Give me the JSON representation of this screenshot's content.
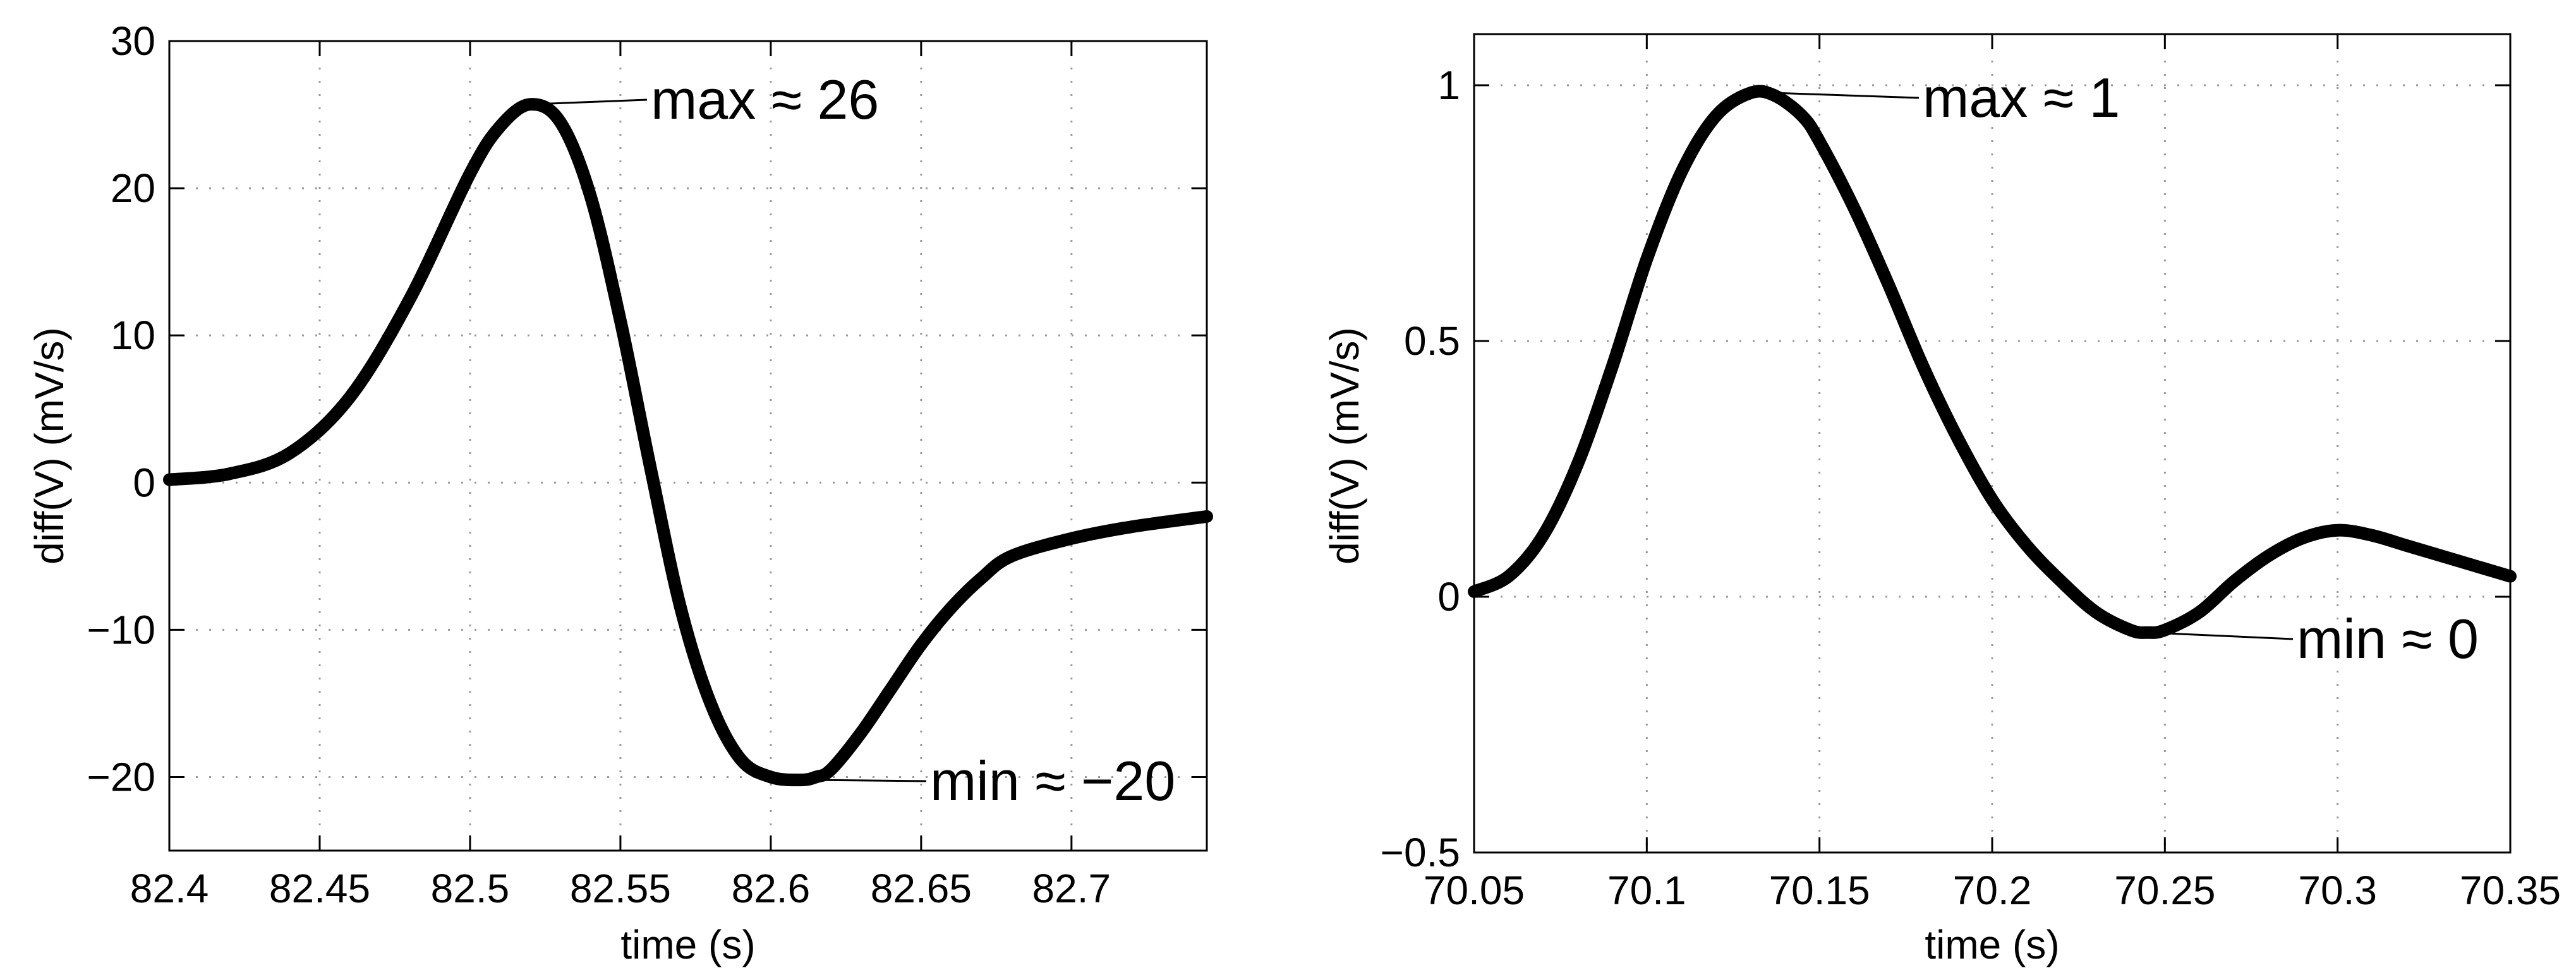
{
  "chart_data": [
    {
      "type": "line",
      "title": "",
      "xlabel": "time (s)",
      "ylabel": "diff(V) (mV/s)",
      "xlim": [
        82.4,
        82.745
      ],
      "ylim": [
        -25,
        30
      ],
      "xticks": [
        82.4,
        82.45,
        82.5,
        82.55,
        82.6,
        82.65,
        82.7
      ],
      "xtick_labels": [
        "82.4",
        "82.45",
        "82.5",
        "82.55",
        "82.6",
        "82.65",
        "82.7"
      ],
      "yticks": [
        -20,
        -10,
        0,
        10,
        20,
        30
      ],
      "ytick_labels": [
        "−20",
        "−10",
        "0",
        "10",
        "20",
        "30"
      ],
      "grid": true,
      "series": [
        {
          "x": [
            82.4,
            82.42,
            82.44,
            82.46,
            82.48,
            82.5,
            82.51,
            82.52,
            82.53,
            82.54,
            82.55,
            82.56,
            82.57,
            82.58,
            82.59,
            82.6,
            82.61,
            82.615,
            82.62,
            82.63,
            82.64,
            82.65,
            82.66,
            82.67,
            82.68,
            82.7,
            82.72,
            82.745
          ],
          "y": [
            0.2,
            0.6,
            2.0,
            5.8,
            12.5,
            21.0,
            24.2,
            25.7,
            24.5,
            19.5,
            11.0,
            1.0,
            -8.5,
            -15.0,
            -18.8,
            -20.0,
            -20.2,
            -20.0,
            -19.5,
            -17.0,
            -14.0,
            -11.0,
            -8.5,
            -6.5,
            -5.0,
            -3.8,
            -3.0,
            -2.3
          ]
        }
      ],
      "annotations": [
        {
          "text": "max ≈ 26",
          "x": 82.52,
          "y": 25.7
        },
        {
          "text": "min ≈ −20",
          "x": 82.615,
          "y": -20.2
        }
      ]
    },
    {
      "type": "line",
      "title": "",
      "xlabel": "time (s)",
      "ylabel": "diff(V) (mV/s)",
      "xlim": [
        70.05,
        70.35
      ],
      "ylim": [
        -0.5,
        1.1
      ],
      "xticks": [
        70.05,
        70.1,
        70.15,
        70.2,
        70.25,
        70.3,
        70.35
      ],
      "xtick_labels": [
        "70.05",
        "70.1",
        "70.15",
        "70.2",
        "70.25",
        "70.3",
        "70.35"
      ],
      "yticks": [
        -0.5,
        0,
        0.5,
        1
      ],
      "ytick_labels": [
        "−0.5",
        "0",
        "0.5",
        "1"
      ],
      "grid": true,
      "series": [
        {
          "x": [
            70.05,
            70.06,
            70.07,
            70.08,
            70.09,
            70.1,
            70.11,
            70.12,
            70.13,
            70.137,
            70.145,
            70.15,
            70.16,
            70.17,
            70.18,
            70.19,
            70.2,
            70.21,
            70.22,
            70.23,
            70.24,
            70.245,
            70.25,
            70.26,
            70.27,
            70.28,
            70.29,
            70.3,
            70.31,
            70.32,
            70.33,
            70.34,
            70.35
          ],
          "y": [
            0.01,
            0.04,
            0.12,
            0.26,
            0.45,
            0.66,
            0.83,
            0.94,
            0.985,
            0.98,
            0.94,
            0.89,
            0.76,
            0.61,
            0.45,
            0.31,
            0.19,
            0.1,
            0.03,
            -0.03,
            -0.065,
            -0.07,
            -0.065,
            -0.03,
            0.03,
            0.08,
            0.115,
            0.13,
            0.12,
            0.1,
            0.08,
            0.06,
            0.04
          ]
        }
      ],
      "annotations": [
        {
          "text": "max ≈ 1",
          "x": 70.137,
          "y": 0.985
        },
        {
          "text": "min ≈ 0",
          "x": 70.245,
          "y": -0.07
        }
      ]
    }
  ]
}
